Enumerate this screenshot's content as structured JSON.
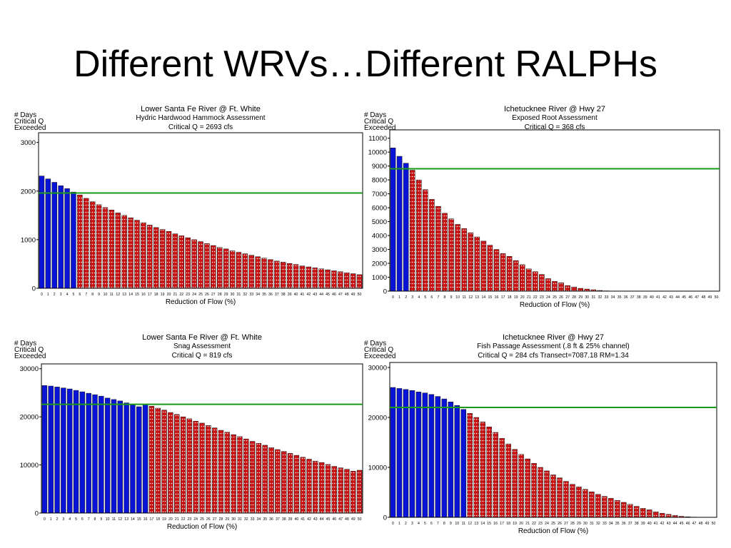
{
  "slide": {
    "title": "Different WRVs…Different RALPHs"
  },
  "colors": {
    "blue_bar": "#0a14d6",
    "red_bar": "#c81414",
    "threshold_line": "#1a9a1a"
  },
  "chart_data": [
    {
      "type": "bar",
      "title": "Lower Santa Fe River @ Ft. White",
      "subtitle": "Hydric Hardwood Hammock Assessment",
      "critical": "Critical Q = 2693 cfs",
      "ylabel_lines": [
        "# Days",
        "Critical Q",
        "Exceeded"
      ],
      "xlabel": "Reduction of Flow (%)",
      "x": [
        0,
        1,
        2,
        3,
        4,
        5,
        6,
        7,
        8,
        9,
        10,
        11,
        12,
        13,
        14,
        15,
        16,
        17,
        18,
        19,
        20,
        21,
        22,
        23,
        24,
        25,
        26,
        27,
        28,
        29,
        30,
        31,
        32,
        33,
        34,
        35,
        36,
        37,
        38,
        39,
        40,
        41,
        42,
        43,
        44,
        45,
        46,
        47,
        48,
        49,
        50
      ],
      "values": [
        2310,
        2250,
        2180,
        2110,
        2050,
        1980,
        1920,
        1850,
        1780,
        1720,
        1660,
        1610,
        1550,
        1500,
        1450,
        1400,
        1350,
        1300,
        1250,
        1210,
        1170,
        1120,
        1080,
        1040,
        1000,
        960,
        920,
        880,
        840,
        810,
        770,
        740,
        710,
        680,
        650,
        620,
        590,
        560,
        540,
        510,
        490,
        460,
        440,
        420,
        400,
        380,
        360,
        340,
        320,
        300,
        280
      ],
      "threshold": 1960,
      "blue_count": 6,
      "ylim": [
        0,
        3200
      ],
      "yticks": [
        0,
        1000,
        2000,
        3000
      ]
    },
    {
      "type": "bar",
      "title": "Ichetucknee River @ Hwy 27",
      "subtitle": "Exposed Root Assessment",
      "critical": "Critical Q = 368 cfs",
      "ylabel_lines": [
        "# Days",
        "Critical Q",
        "Exceeded"
      ],
      "xlabel": "Reduction of Flow (%)",
      "x": [
        0,
        1,
        2,
        3,
        4,
        5,
        6,
        7,
        8,
        9,
        10,
        11,
        12,
        13,
        14,
        15,
        16,
        17,
        18,
        19,
        20,
        21,
        22,
        23,
        24,
        25,
        26,
        27,
        28,
        29,
        30,
        31,
        32,
        33,
        34,
        35,
        36,
        37,
        38,
        39,
        40,
        41,
        42,
        43,
        44,
        45,
        46,
        47,
        48,
        49,
        50
      ],
      "values": [
        10300,
        9700,
        9200,
        8700,
        8000,
        7300,
        6600,
        6100,
        5600,
        5200,
        4800,
        4500,
        4200,
        3900,
        3600,
        3300,
        3000,
        2700,
        2500,
        2200,
        1900,
        1600,
        1400,
        1200,
        900,
        700,
        600,
        400,
        300,
        200,
        150,
        100,
        50,
        20,
        0,
        0,
        0,
        0,
        0,
        0,
        0,
        0,
        0,
        0,
        0,
        0,
        0,
        0,
        0,
        0,
        0
      ],
      "threshold": 8800,
      "blue_count": 3,
      "ylim": [
        0,
        11600
      ],
      "yticks": [
        0,
        1000,
        2000,
        3000,
        4000,
        5000,
        6000,
        7000,
        8000,
        9000,
        10000,
        11000
      ]
    },
    {
      "type": "bar",
      "title": "Lower Santa Fe River @ Ft. White",
      "subtitle": "Snag Assessment",
      "critical": "Critical Q = 819 cfs",
      "ylabel_lines": [
        "# Days",
        "Critical Q",
        "Exceeded"
      ],
      "xlabel": "Reduction of Flow (%)",
      "x": [
        0,
        1,
        2,
        3,
        4,
        5,
        6,
        7,
        8,
        9,
        10,
        11,
        12,
        13,
        14,
        15,
        16,
        17,
        18,
        19,
        20,
        21,
        22,
        23,
        24,
        25,
        26,
        27,
        28,
        29,
        30,
        31,
        32,
        33,
        34,
        35,
        36,
        37,
        38,
        39,
        40,
        41,
        42,
        43,
        44,
        45,
        46,
        47,
        48,
        49,
        50
      ],
      "values": [
        26500,
        26400,
        26200,
        26000,
        25800,
        25500,
        25200,
        24900,
        24600,
        24300,
        23900,
        23600,
        23300,
        22900,
        22500,
        22100,
        22600,
        22200,
        21800,
        21400,
        20900,
        20500,
        20000,
        19600,
        19100,
        18700,
        18200,
        17700,
        17200,
        16800,
        16300,
        15900,
        15400,
        14900,
        14500,
        14100,
        13600,
        13200,
        12800,
        12400,
        12000,
        11600,
        11200,
        10800,
        10500,
        10100,
        9700,
        9400,
        9100,
        8700,
        8900
      ],
      "threshold": 22600,
      "blue_count": 17,
      "ylim": [
        0,
        31000
      ],
      "yticks": [
        0,
        10000,
        20000,
        30000
      ]
    },
    {
      "type": "bar",
      "title": "Ichetucknee River @ Hwy 27",
      "subtitle": "Fish Passage Assessment (.8 ft & 25% channel)",
      "critical": "Critical Q = 284 cfs Transect=7087.18 RM=1.34",
      "ylabel_lines": [
        "# Days",
        "Critical Q",
        "Exceeded"
      ],
      "xlabel": "Reduction of Flow (%)",
      "x": [
        0,
        1,
        2,
        3,
        4,
        5,
        6,
        7,
        8,
        9,
        10,
        11,
        12,
        13,
        14,
        15,
        16,
        17,
        18,
        19,
        20,
        21,
        22,
        23,
        24,
        25,
        26,
        27,
        28,
        29,
        30,
        31,
        32,
        33,
        34,
        35,
        36,
        37,
        38,
        39,
        40,
        41,
        42,
        43,
        44,
        45,
        46,
        47,
        48,
        49,
        50
      ],
      "values": [
        26000,
        25800,
        25600,
        25400,
        25100,
        24900,
        24600,
        24200,
        23700,
        23100,
        22400,
        21600,
        20800,
        20000,
        19100,
        18100,
        17000,
        15800,
        14700,
        13600,
        12600,
        11700,
        10800,
        10000,
        9300,
        8500,
        7900,
        7200,
        6600,
        6100,
        5600,
        5100,
        4600,
        4200,
        3800,
        3400,
        3000,
        2600,
        2200,
        1800,
        1500,
        1100,
        800,
        600,
        400,
        200,
        100,
        50,
        0,
        0,
        0
      ],
      "threshold": 22000,
      "blue_count": 12,
      "ylim": [
        0,
        31000
      ],
      "yticks": [
        0,
        10000,
        20000,
        30000
      ]
    }
  ]
}
